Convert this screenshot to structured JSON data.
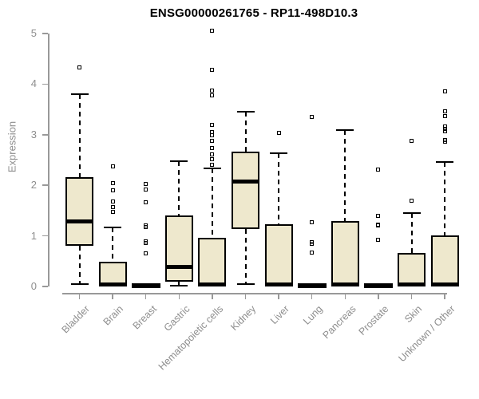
{
  "chart_data": {
    "type": "boxplot",
    "title": "ENSG00000261765 - RP11-498D10.3",
    "xlabel": "",
    "ylabel": "Expression",
    "ylim": [
      0,
      5.1
    ],
    "y_ticks": [
      0,
      1,
      2,
      3,
      4,
      5
    ],
    "grid": false,
    "legend": false,
    "categories": [
      "Bladder",
      "Brain",
      "Breast",
      "Gastric",
      "Hematopoietic cells",
      "Kidney",
      "Liver",
      "Lung",
      "Pancreas",
      "Prostate",
      "Skin",
      "Unknown / Other"
    ],
    "boxes": [
      {
        "category": "Bladder",
        "whisker_low": 0.05,
        "q1": 0.8,
        "median": 1.29,
        "q3": 2.16,
        "whisker_high": 3.8,
        "outliers": [
          4.33
        ]
      },
      {
        "category": "Brain",
        "whisker_low": 0.02,
        "q1": 0.02,
        "median": 0.04,
        "q3": 0.49,
        "whisker_high": 1.17,
        "outliers": [
          2.37,
          2.05,
          1.9,
          1.68,
          1.57,
          1.47
        ]
      },
      {
        "category": "Breast",
        "whisker_low": 0.02,
        "q1": 0.02,
        "median": 0.02,
        "q3": 0.02,
        "whisker_high": 0.02,
        "outliers": [
          2.03,
          1.91,
          1.67,
          1.21,
          1.18,
          0.89,
          0.86,
          0.66
        ]
      },
      {
        "category": "Gastric",
        "whisker_low": 0.02,
        "q1": 0.09,
        "median": 0.38,
        "q3": 1.4,
        "whisker_high": 2.47,
        "outliers": []
      },
      {
        "category": "Hematopoietic cells",
        "whisker_low": 0.02,
        "q1": 0.02,
        "median": 0.04,
        "q3": 0.97,
        "whisker_high": 2.33,
        "outliers": [
          5.05,
          4.28,
          3.87,
          3.77,
          3.19,
          3.05,
          2.99,
          2.88,
          2.74,
          2.61,
          2.51,
          2.41
        ]
      },
      {
        "category": "Kidney",
        "whisker_low": 0.05,
        "q1": 1.14,
        "median": 2.07,
        "q3": 2.67,
        "whisker_high": 3.45,
        "outliers": []
      },
      {
        "category": "Liver",
        "whisker_low": 0.02,
        "q1": 0.02,
        "median": 0.04,
        "q3": 1.23,
        "whisker_high": 2.63,
        "outliers": [
          3.04
        ]
      },
      {
        "category": "Lung",
        "whisker_low": 0.02,
        "q1": 0.02,
        "median": 0.02,
        "q3": 0.02,
        "whisker_high": 0.02,
        "outliers": [
          3.35,
          1.27,
          0.87,
          0.84,
          0.67
        ]
      },
      {
        "category": "Pancreas",
        "whisker_low": 0.02,
        "q1": 0.02,
        "median": 0.04,
        "q3": 1.3,
        "whisker_high": 3.09,
        "outliers": []
      },
      {
        "category": "Prostate",
        "whisker_low": 0.02,
        "q1": 0.02,
        "median": 0.02,
        "q3": 0.02,
        "whisker_high": 0.02,
        "outliers": [
          2.31,
          1.4,
          1.23,
          1.2,
          0.93
        ]
      },
      {
        "category": "Skin",
        "whisker_low": 0.02,
        "q1": 0.02,
        "median": 0.04,
        "q3": 0.66,
        "whisker_high": 1.45,
        "outliers": [
          2.88,
          1.69
        ]
      },
      {
        "category": "Unknown / Other",
        "whisker_low": 0.02,
        "q1": 0.02,
        "median": 0.04,
        "q3": 1.01,
        "whisker_high": 2.46,
        "outliers": [
          3.85,
          3.46,
          3.36,
          3.16,
          3.11,
          3.06,
          2.89,
          2.87
        ]
      }
    ],
    "colors": {
      "box_fill": "#EEE8CD",
      "box_border": "#000000",
      "median": "#000000",
      "whisker": "#000000",
      "axis_line": "#999999",
      "axis_text": "#8E8E8E",
      "title_text": "#000000",
      "background": "#FFFFFF"
    }
  }
}
